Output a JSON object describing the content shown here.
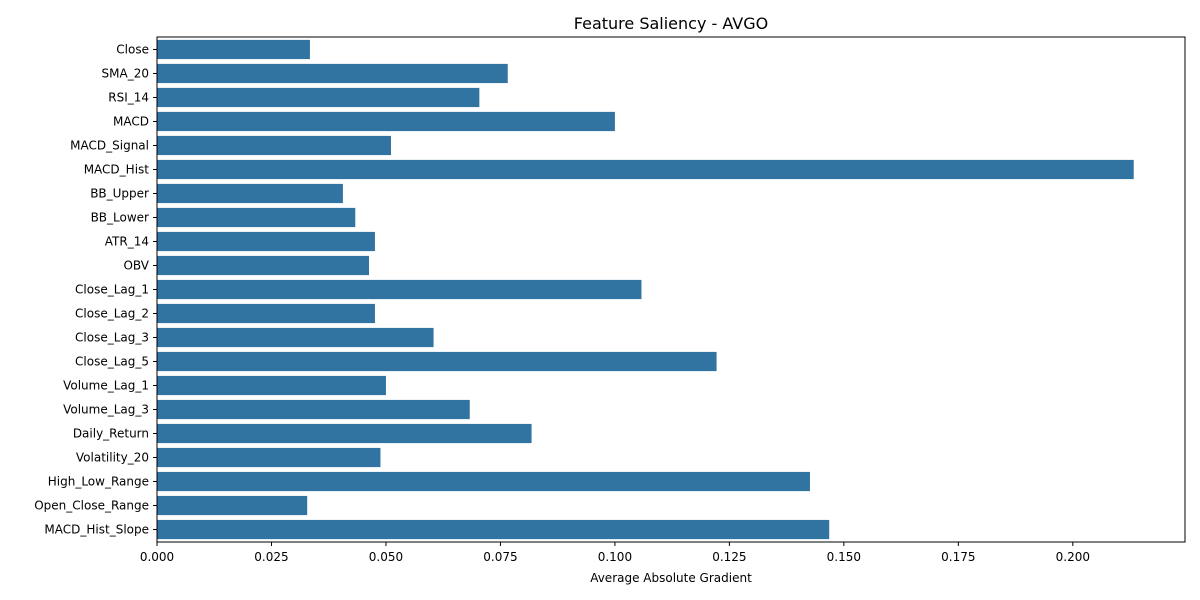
{
  "chart_data": {
    "type": "bar",
    "orientation": "horizontal",
    "title": "Feature Saliency - AVGO",
    "xlabel": "Average Absolute Gradient",
    "ylabel": "",
    "xlim": [
      0,
      0.2245
    ],
    "xticks": [
      0.0,
      0.025,
      0.05,
      0.075,
      0.1,
      0.125,
      0.15,
      0.175,
      0.2
    ],
    "xtick_labels": [
      "0.000",
      "0.025",
      "0.050",
      "0.075",
      "0.100",
      "0.125",
      "0.150",
      "0.175",
      "0.200"
    ],
    "bar_color": "#3274a1",
    "grid": false,
    "categories": [
      "Close",
      "SMA_20",
      "RSI_14",
      "MACD",
      "MACD_Signal",
      "MACD_Hist",
      "BB_Upper",
      "BB_Lower",
      "ATR_14",
      "OBV",
      "Close_Lag_1",
      "Close_Lag_2",
      "Close_Lag_3",
      "Close_Lag_5",
      "Volume_Lag_1",
      "Volume_Lag_3",
      "Daily_Return",
      "Volatility_20",
      "High_Low_Range",
      "Open_Close_Range",
      "MACD_Hist_Slope"
    ],
    "values": [
      0.0334,
      0.0766,
      0.0704,
      0.1,
      0.0511,
      0.2133,
      0.0406,
      0.0433,
      0.0476,
      0.0463,
      0.1058,
      0.0476,
      0.0604,
      0.1222,
      0.05,
      0.0683,
      0.0818,
      0.0488,
      0.1426,
      0.0328,
      0.1468
    ]
  }
}
